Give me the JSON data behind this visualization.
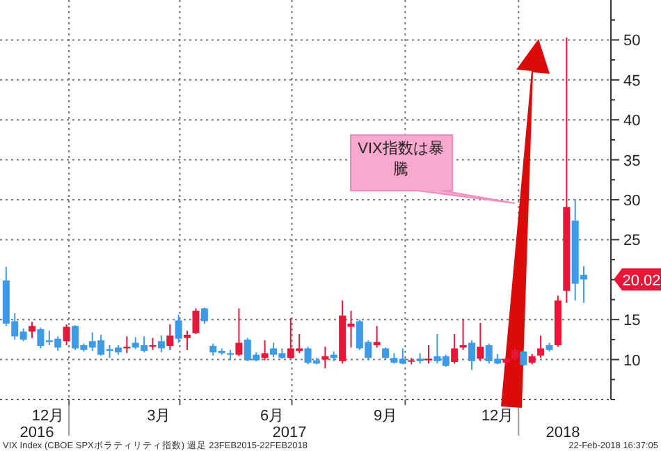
{
  "chart_data": {
    "type": "candlestick",
    "x": [
      "2016-11-11",
      "2016-11-18",
      "2016-11-25",
      "2016-12-02",
      "2016-12-09",
      "2016-12-16",
      "2016-12-23",
      "2016-12-30",
      "2017-01-06",
      "2017-01-13",
      "2017-01-20",
      "2017-01-27",
      "2017-02-03",
      "2017-02-10",
      "2017-02-17",
      "2017-02-24",
      "2017-03-03",
      "2017-03-10",
      "2017-03-17",
      "2017-03-24",
      "2017-03-31",
      "2017-04-07",
      "2017-04-14",
      "2017-04-21",
      "2017-04-28",
      "2017-05-05",
      "2017-05-12",
      "2017-05-19",
      "2017-05-26",
      "2017-06-02",
      "2017-06-09",
      "2017-06-16",
      "2017-06-23",
      "2017-06-30",
      "2017-07-07",
      "2017-07-14",
      "2017-07-21",
      "2017-07-28",
      "2017-08-04",
      "2017-08-11",
      "2017-08-18",
      "2017-08-25",
      "2017-09-01",
      "2017-09-08",
      "2017-09-15",
      "2017-09-22",
      "2017-09-29",
      "2017-10-06",
      "2017-10-13",
      "2017-10-20",
      "2017-10-27",
      "2017-11-03",
      "2017-11-10",
      "2017-11-17",
      "2017-11-24",
      "2017-12-01",
      "2017-12-08",
      "2017-12-15",
      "2017-12-22",
      "2017-12-29",
      "2018-01-05",
      "2018-01-12",
      "2018-01-19",
      "2018-01-26",
      "2018-02-02",
      "2018-02-09",
      "2018-02-16",
      "2018-02-23"
    ],
    "ohlc": [
      [
        19.9,
        21.6,
        14.2,
        14.5
      ],
      [
        14.8,
        15.8,
        12.5,
        12.9
      ],
      [
        13.5,
        13.9,
        12.3,
        12.5
      ],
      [
        13.5,
        14.7,
        12.7,
        14.2
      ],
      [
        13.8,
        14.0,
        11.4,
        11.7
      ],
      [
        12.4,
        13.6,
        11.8,
        12.2
      ],
      [
        12.6,
        12.9,
        11.1,
        11.5
      ],
      [
        12.3,
        14.4,
        11.8,
        14.1
      ],
      [
        14.2,
        14.3,
        11.2,
        11.4
      ],
      [
        11.8,
        12.0,
        11.0,
        11.2
      ],
      [
        12.3,
        13.4,
        11.1,
        11.5
      ],
      [
        12.4,
        13.1,
        10.5,
        10.6
      ],
      [
        11.3,
        11.8,
        10.2,
        11.1
      ],
      [
        11.5,
        11.8,
        10.6,
        10.9
      ],
      [
        11.4,
        12.9,
        10.8,
        11.6
      ],
      [
        12.1,
        12.8,
        11.3,
        11.5
      ],
      [
        11.8,
        12.9,
        10.9,
        11.1
      ],
      [
        11.6,
        12.7,
        11.2,
        11.8
      ],
      [
        12.3,
        13.0,
        10.9,
        11.4
      ],
      [
        11.7,
        14.4,
        11.2,
        13.0
      ],
      [
        14.9,
        15.6,
        12.1,
        12.6
      ],
      [
        12.7,
        13.6,
        11.2,
        13.1
      ],
      [
        13.3,
        16.4,
        13.2,
        16.1
      ],
      [
        16.4,
        16.5,
        14.5,
        14.8
      ],
      [
        11.7,
        12.0,
        10.5,
        10.9
      ],
      [
        11.1,
        11.4,
        10.6,
        10.8
      ],
      [
        10.8,
        11.2,
        9.9,
        10.6
      ],
      [
        10.6,
        16.4,
        10.4,
        12.1
      ],
      [
        12.5,
        12.7,
        9.8,
        9.9
      ],
      [
        10.6,
        10.9,
        9.8,
        9.9
      ],
      [
        10.2,
        12.4,
        9.9,
        10.8
      ],
      [
        11.4,
        12.1,
        10.3,
        10.6
      ],
      [
        10.8,
        11.4,
        10.1,
        10.2
      ],
      [
        10.2,
        15.2,
        10.1,
        11.4
      ],
      [
        11.1,
        13.2,
        10.8,
        11.4
      ],
      [
        11.4,
        11.6,
        9.4,
        9.6
      ],
      [
        9.9,
        10.2,
        9.4,
        9.5
      ],
      [
        10.0,
        11.6,
        8.9,
        10.4
      ],
      [
        10.6,
        11.0,
        9.8,
        10.2
      ],
      [
        9.8,
        17.4,
        9.5,
        15.5
      ],
      [
        14.1,
        16.1,
        11.5,
        14.5
      ],
      [
        14.8,
        15.0,
        11.2,
        11.4
      ],
      [
        12.2,
        12.4,
        10.0,
        10.2
      ],
      [
        11.8,
        14.2,
        11.5,
        12.2
      ],
      [
        11.4,
        11.5,
        10.0,
        10.2
      ],
      [
        10.2,
        10.8,
        9.5,
        9.6
      ],
      [
        10.1,
        11.4,
        9.4,
        9.5
      ],
      [
        9.8,
        10.2,
        9.4,
        9.9
      ],
      [
        10.1,
        10.8,
        9.5,
        9.8
      ],
      [
        9.9,
        11.8,
        9.5,
        10.1
      ],
      [
        10.4,
        13.2,
        9.5,
        9.8
      ],
      [
        10.4,
        10.6,
        9.1,
        9.2
      ],
      [
        9.7,
        13.2,
        9.5,
        11.4
      ],
      [
        11.5,
        15.1,
        11.2,
        11.8
      ],
      [
        12.1,
        12.4,
        8.7,
        9.8
      ],
      [
        10.1,
        14.6,
        9.8,
        11.6
      ],
      [
        11.8,
        12.0,
        9.5,
        9.8
      ],
      [
        10.1,
        10.7,
        9.4,
        9.5
      ],
      [
        9.6,
        10.2,
        9.2,
        10.1
      ],
      [
        10.1,
        11.5,
        9.9,
        11.2
      ],
      [
        11.0,
        11.2,
        9.2,
        9.3
      ],
      [
        9.6,
        10.7,
        9.4,
        10.4
      ],
      [
        10.5,
        13.0,
        10.2,
        11.4
      ],
      [
        11.8,
        12.1,
        11.0,
        11.2
      ],
      [
        11.8,
        18.0,
        11.6,
        17.4
      ],
      [
        18.6,
        50.3,
        17.1,
        29.1
      ],
      [
        27.4,
        30.1,
        17.4,
        19.5
      ],
      [
        20.6,
        21.7,
        17.1,
        20.02
      ]
    ],
    "colors": [
      "#3d9ae8",
      "#3d9ae8",
      "#3d9ae8",
      "#e8173a",
      "#3d9ae8",
      "#3d9ae8",
      "#3d9ae8",
      "#e8173a",
      "#3d9ae8",
      "#3d9ae8",
      "#3d9ae8",
      "#3d9ae8",
      "#3d9ae8",
      "#3d9ae8",
      "#e8173a",
      "#3d9ae8",
      "#3d9ae8",
      "#e8173a",
      "#3d9ae8",
      "#e8173a",
      "#3d9ae8",
      "#e8173a",
      "#e8173a",
      "#3d9ae8",
      "#3d9ae8",
      "#3d9ae8",
      "#3d9ae8",
      "#e8173a",
      "#3d9ae8",
      "#3d9ae8",
      "#e8173a",
      "#3d9ae8",
      "#3d9ae8",
      "#e8173a",
      "#e8173a",
      "#3d9ae8",
      "#3d9ae8",
      "#e8173a",
      "#3d9ae8",
      "#e8173a",
      "#e8173a",
      "#3d9ae8",
      "#3d9ae8",
      "#e8173a",
      "#3d9ae8",
      "#3d9ae8",
      "#3d9ae8",
      "#e8173a",
      "#3d9ae8",
      "#e8173a",
      "#3d9ae8",
      "#3d9ae8",
      "#e8173a",
      "#e8173a",
      "#3d9ae8",
      "#e8173a",
      "#3d9ae8",
      "#3d9ae8",
      "#e8173a",
      "#e8173a",
      "#3d9ae8",
      "#e8173a",
      "#e8173a",
      "#3d9ae8",
      "#e8173a",
      "#e8173a",
      "#3d9ae8",
      "#3d9ae8"
    ],
    "xlim": [
      "2016-11-06",
      "2018-03-17"
    ],
    "xticks": [
      {
        "value": "2016-12-15",
        "label": "12月"
      },
      {
        "value": "2017-01-01",
        "label": null
      },
      {
        "value": "2017-03-15",
        "label": "3月"
      },
      {
        "value": "2017-04-01",
        "label": null
      },
      {
        "value": "2017-06-15",
        "label": "6月"
      },
      {
        "value": "2017-07-01",
        "label": null
      },
      {
        "value": "2017-09-15",
        "label": "9月"
      },
      {
        "value": "2017-10-01",
        "label": null
      },
      {
        "value": "2017-12-15",
        "label": "12月"
      },
      {
        "value": "2018-01-01",
        "label": null
      }
    ],
    "x2lim": [
      "2016-11-06",
      "2018-03-17"
    ],
    "x2ticks": [
      {
        "value": "2016-12-06",
        "label": "2016"
      },
      {
        "value": "2017-01-01",
        "label": null
      },
      {
        "value": "2017-06-29",
        "label": "2017"
      },
      {
        "value": "2018-01-01",
        "label": null
      },
      {
        "value": "2018-02-06",
        "label": "2018"
      }
    ],
    "ylim": [
      5,
      55
    ],
    "yticks": [
      {
        "value": 5,
        "label": null
      },
      {
        "value": 7.5,
        "label": null
      },
      10,
      {
        "value": 12.5,
        "label": null
      },
      15,
      {
        "value": 17.5,
        "label": null
      },
      {
        "value": 20,
        "label": null
      },
      {
        "value": 22.5,
        "label": null
      },
      25,
      {
        "value": 27.5,
        "label": null
      },
      30,
      {
        "value": 32.5,
        "label": null
      },
      35,
      {
        "value": 37.5,
        "label": null
      },
      40,
      {
        "value": 42.5,
        "label": null
      },
      45,
      {
        "value": 47.5,
        "label": null
      },
      50,
      {
        "value": 52.5,
        "label": null
      }
    ],
    "grid": true,
    "annotations": [
      "VIX指数は暴騰",
      "VIX Index (CBOE SPXボラティリティ指数) 週足 23FEB2015-22FEB2018",
      "22-Feb-2018 16:37:05",
      {
        "text": "20.02",
        "x": "2018-02-23",
        "y": 20.02
      }
    ]
  }
}
